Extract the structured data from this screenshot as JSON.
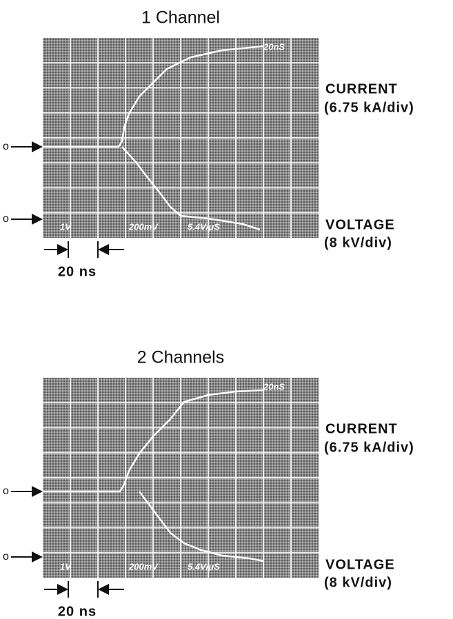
{
  "panels": [
    {
      "title": "1 Channel",
      "scope_labels": [
        "20nS",
        "1V",
        "200mV",
        "5.4V/μS"
      ],
      "current_zero": "o",
      "voltage_zero": "o",
      "current": {
        "label": "CURRENT",
        "scale": "(6.75 kA/div)"
      },
      "voltage": {
        "label": "VOLTAGE",
        "scale": "(8 kV/div)"
      },
      "time_marker": "20 ns"
    },
    {
      "title": "2 Channels",
      "scope_labels": [
        "20nS",
        "1V",
        "200mV",
        "5.4V/μS"
      ],
      "current_zero": "o",
      "voltage_zero": "o",
      "current": {
        "label": "CURRENT",
        "scale": "(6.75 kA/div)"
      },
      "voltage": {
        "label": "VOLTAGE",
        "scale": "(8 kV/div)"
      },
      "time_marker": "20 ns"
    }
  ]
}
